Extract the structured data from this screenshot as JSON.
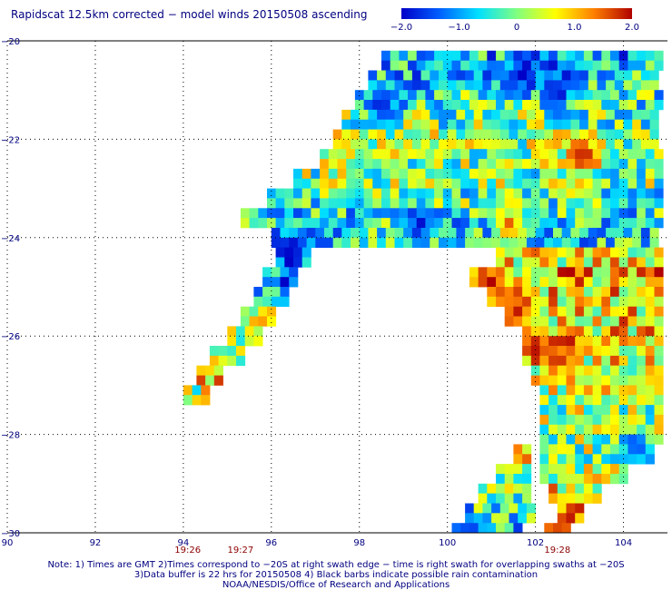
{
  "chart_data": {
    "type": "heatmap",
    "title": "Rapidscat 12.5km corrected − model winds 20150508 ascending",
    "xlim": [
      90,
      105
    ],
    "ylim": [
      -30,
      -20
    ],
    "x_ticks": [
      90,
      92,
      94,
      96,
      98,
      100,
      102,
      104
    ],
    "y_ticks": [
      -20,
      -22,
      -24,
      -26,
      -28,
      -30
    ],
    "x_tick_labels": [
      "90",
      "92",
      "94",
      "96",
      "98",
      "100",
      "102",
      "104"
    ],
    "y_tick_labels": [
      "−20",
      "−22",
      "−24",
      "−26",
      "−28",
      "−30"
    ],
    "grid": true,
    "colorbar": {
      "range": [
        -2.0,
        2.0
      ],
      "ticks": [
        -2.0,
        -1.0,
        0,
        1.0,
        2.0
      ],
      "tick_labels": [
        "−2.0",
        "−1.0",
        "0",
        "1.0",
        "2.0"
      ],
      "colors": [
        "#0000c8",
        "#0060ff",
        "#00e0ff",
        "#80ff80",
        "#ffff00",
        "#ff8000",
        "#b00000"
      ]
    },
    "time_labels": [
      {
        "lon": 94.1,
        "text": "19:26"
      },
      {
        "lon": 95.3,
        "text": "19:27"
      },
      {
        "lon": 102.5,
        "text": "19:28"
      }
    ],
    "swath": {
      "cell_deg": 0.2,
      "rows": [
        {
          "lat": -20.3,
          "lon_min": 98.5,
          "lon_max": 104.8,
          "mean": -0.8
        },
        {
          "lat": -20.7,
          "lon_min": 98.2,
          "lon_max": 104.8,
          "mean": -0.7
        },
        {
          "lat": -21.1,
          "lon_min": 97.9,
          "lon_max": 104.8,
          "mean": -0.4
        },
        {
          "lat": -21.5,
          "lon_min": 97.6,
          "lon_max": 104.8,
          "mean": -0.1
        },
        {
          "lat": -21.9,
          "lon_min": 97.4,
          "lon_max": 104.8,
          "mean": 0.1
        },
        {
          "lat": -22.3,
          "lon_min": 97.1,
          "lon_max": 104.8,
          "mean": 0.1
        },
        {
          "lat": -22.7,
          "lon_min": 96.5,
          "lon_max": 104.8,
          "mean": 0.0
        },
        {
          "lat": -23.1,
          "lon_min": 95.9,
          "lon_max": 104.8,
          "mean": -0.2
        },
        {
          "lat": -23.5,
          "lon_min": 95.3,
          "lon_max": 104.8,
          "mean": -0.5
        },
        {
          "lat": -23.9,
          "lon_min": 96.0,
          "lon_max": 104.8,
          "mean": -0.6
        },
        {
          "lat": -24.3,
          "lon_min": 101.1,
          "lon_max": 104.8,
          "mean": 0.7
        },
        {
          "lat": -24.7,
          "lon_min": 100.5,
          "lon_max": 104.8,
          "mean": 0.9
        },
        {
          "lat": -25.1,
          "lon_min": 100.9,
          "lon_max": 104.8,
          "mean": 0.8
        },
        {
          "lat": -25.5,
          "lon_min": 101.3,
          "lon_max": 104.8,
          "mean": 0.7
        },
        {
          "lat": -25.9,
          "lon_min": 101.7,
          "lon_max": 104.8,
          "mean": 0.8
        },
        {
          "lat": -26.3,
          "lon_min": 101.7,
          "lon_max": 104.8,
          "mean": 0.6
        },
        {
          "lat": -26.7,
          "lon_min": 101.9,
          "lon_max": 104.8,
          "mean": 0.5
        },
        {
          "lat": -27.1,
          "lon_min": 102.1,
          "lon_max": 104.8,
          "mean": 0.3
        },
        {
          "lat": -27.5,
          "lon_min": 102.1,
          "lon_max": 104.8,
          "mean": 0.2
        },
        {
          "lat": -27.9,
          "lon_min": 102.1,
          "lon_max": 104.8,
          "mean": 0.2
        },
        {
          "lat": -28.3,
          "lon_min": 102.1,
          "lon_max": 104.6,
          "mean": 0.1
        },
        {
          "lat": -28.7,
          "lon_min": 102.1,
          "lon_max": 104.1,
          "mean": 0.3
        },
        {
          "lat": -29.1,
          "lon_min": 102.3,
          "lon_max": 103.5,
          "mean": 0.6
        },
        {
          "lat": -29.5,
          "lon_min": 102.5,
          "lon_max": 103.1,
          "mean": 0.8
        },
        {
          "lat": -29.9,
          "lon_min": 102.2,
          "lon_max": 102.7,
          "mean": 0.5
        }
      ],
      "arm": [
        {
          "lat": -24.3,
          "lon_min": 96.1,
          "lon_max": 96.9,
          "mean": -1.3
        },
        {
          "lat": -24.7,
          "lon_min": 95.8,
          "lon_max": 96.6,
          "mean": -1.1
        },
        {
          "lat": -25.1,
          "lon_min": 95.6,
          "lon_max": 96.3,
          "mean": -0.6
        },
        {
          "lat": -25.5,
          "lon_min": 95.3,
          "lon_max": 96.0,
          "mean": 0.2
        },
        {
          "lat": -25.9,
          "lon_min": 95.0,
          "lon_max": 95.7,
          "mean": 0.3
        },
        {
          "lat": -26.3,
          "lon_min": 94.6,
          "lon_max": 95.3,
          "mean": 0.6
        },
        {
          "lat": -26.7,
          "lon_min": 94.3,
          "lon_max": 94.9,
          "mean": 0.7
        },
        {
          "lat": -27.1,
          "lon_min": 94.0,
          "lon_max": 94.5,
          "mean": 0.4
        }
      ],
      "lower_arm": [
        {
          "lat": -28.3,
          "lon_min": 101.5,
          "lon_max": 101.9,
          "mean": 0.5
        },
        {
          "lat": -28.7,
          "lon_min": 101.1,
          "lon_max": 101.9,
          "mean": 0.3
        },
        {
          "lat": -29.1,
          "lon_min": 100.7,
          "lon_max": 101.9,
          "mean": 0.0
        },
        {
          "lat": -29.5,
          "lon_min": 100.4,
          "lon_max": 101.9,
          "mean": -0.4
        },
        {
          "lat": -29.9,
          "lon_min": 100.1,
          "lon_max": 101.7,
          "mean": -0.9
        }
      ]
    },
    "hot_spots": [
      {
        "lon": 100.9,
        "lat": -24.8,
        "value": 2.0
      },
      {
        "lon": 101.4,
        "lat": -25.3,
        "value": 1.9
      },
      {
        "lon": 101.9,
        "lat": -26.1,
        "value": 2.0
      },
      {
        "lon": 102.4,
        "lat": -26.4,
        "value": 1.8
      },
      {
        "lon": 103.0,
        "lat": -22.2,
        "value": 1.9
      },
      {
        "lon": 101.3,
        "lat": -23.7,
        "value": 1.8
      },
      {
        "lon": 102.6,
        "lat": -29.7,
        "value": 1.9
      }
    ],
    "cold_spots": [
      {
        "lon": 101.6,
        "lat": -20.6,
        "value": -2.0
      },
      {
        "lon": 102.4,
        "lat": -20.9,
        "value": -2.0
      },
      {
        "lon": 98.4,
        "lat": -21.2,
        "value": -2.0
      },
      {
        "lon": 99.3,
        "lat": -23.6,
        "value": -1.9
      },
      {
        "lon": 96.3,
        "lat": -24.1,
        "value": -2.0
      },
      {
        "lon": 104.2,
        "lat": -28.2,
        "value": -1.8
      },
      {
        "lon": 100.4,
        "lat": -29.9,
        "value": -1.9
      }
    ],
    "footnotes": [
      "Note: 1) Times are GMT 2)Times correspond to −20S at right swath edge − time is right swath for overlapping swaths at −20S",
      "3)Data buffer is 22 hrs for 20150508 4) Black barbs indicate possible rain contamination",
      "NOAA/NESDIS/Office of Research and Applications"
    ]
  }
}
